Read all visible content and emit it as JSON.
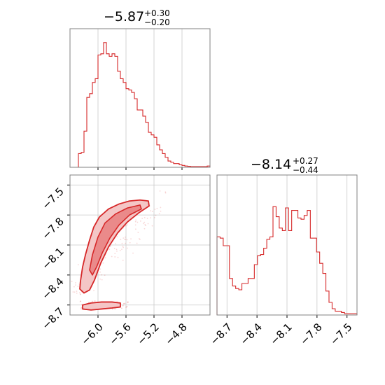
{
  "colors": {
    "line": "#d62728",
    "fill_light": "#f4c6c6",
    "fill_mid": "#ea8a8a",
    "grid": "#c8c8c8",
    "frame": "#808080"
  },
  "chart_data": {
    "type": "corner",
    "params": [
      {
        "title": {
          "main": "−5.87",
          "plus": "+0.30",
          "minus": "−0.20"
        },
        "median": -5.87,
        "err_plus": 0.3,
        "err_minus": 0.2,
        "range": [
          -6.4,
          -4.4
        ],
        "ticks": [
          -6.0,
          -5.6,
          -5.2,
          -4.8
        ],
        "tick_labels": [
          "−6.0",
          "−5.6",
          "−5.2",
          "−4.8"
        ],
        "hist": [
          0,
          0,
          0,
          0.11,
          0.12,
          0.29,
          0.56,
          0.59,
          0.68,
          0.71,
          0.9,
          0.91,
          1.0,
          0.91,
          0.89,
          0.91,
          0.89,
          0.77,
          0.71,
          0.68,
          0.63,
          0.62,
          0.6,
          0.55,
          0.46,
          0.46,
          0.41,
          0.36,
          0.28,
          0.26,
          0.24,
          0.18,
          0.14,
          0.11,
          0.08,
          0.05,
          0.04,
          0.03,
          0.03,
          0.02,
          0.015,
          0.01,
          0.008,
          0.005,
          0.005,
          0.005,
          0.005,
          0.005,
          0.005,
          0.01
        ]
      },
      {
        "title": {
          "main": "−8.14",
          "plus": "+0.27",
          "minus": "−0.44"
        },
        "median": -8.14,
        "err_plus": 0.27,
        "err_minus": 0.44,
        "range": [
          -8.8,
          -7.4
        ],
        "ticks": [
          -8.7,
          -8.4,
          -8.1,
          -7.8,
          -7.5
        ],
        "tick_labels": [
          "−8.7",
          "−8.4",
          "−8.1",
          "−7.8",
          "−7.5"
        ],
        "hist": [
          0.62,
          0.61,
          0.55,
          0.55,
          0.29,
          0.23,
          0.21,
          0.2,
          0.25,
          0.25,
          0.29,
          0.29,
          0.4,
          0.47,
          0.48,
          0.53,
          0.6,
          0.62,
          0.86,
          0.78,
          0.69,
          0.67,
          0.85,
          0.67,
          0.83,
          0.83,
          0.77,
          0.76,
          0.79,
          0.83,
          0.61,
          0.61,
          0.5,
          0.41,
          0.33,
          0.19,
          0.1,
          0.05,
          0.03,
          0.03,
          0.02,
          0.01,
          0.01,
          0.01,
          0.01
        ]
      }
    ],
    "joint": {
      "x_ticks": [
        -6.0,
        -5.6,
        -5.2,
        -4.8
      ],
      "y_ticks": [
        -8.7,
        -8.4,
        -8.1,
        -7.8,
        -7.5
      ],
      "y_tick_labels": [
        "−8.7",
        "−8.4",
        "−8.1",
        "−7.8",
        "−7.5"
      ],
      "contours": {
        "outer": [
          [
            -6.25,
            -8.46
          ],
          [
            -6.22,
            -8.32
          ],
          [
            -6.18,
            -8.2
          ],
          [
            -6.12,
            -8.05
          ],
          [
            -6.06,
            -7.92
          ],
          [
            -5.98,
            -7.82
          ],
          [
            -5.85,
            -7.74
          ],
          [
            -5.7,
            -7.69
          ],
          [
            -5.55,
            -7.66
          ],
          [
            -5.4,
            -7.65
          ],
          [
            -5.28,
            -7.66
          ],
          [
            -5.27,
            -7.71
          ],
          [
            -5.42,
            -7.78
          ],
          [
            -5.58,
            -7.87
          ],
          [
            -5.72,
            -7.98
          ],
          [
            -5.85,
            -8.12
          ],
          [
            -5.96,
            -8.28
          ],
          [
            -6.05,
            -8.45
          ],
          [
            -6.12,
            -8.55
          ],
          [
            -6.2,
            -8.58
          ],
          [
            -6.26,
            -8.54
          ]
        ],
        "inner": [
          [
            -6.12,
            -8.35
          ],
          [
            -6.08,
            -8.2
          ],
          [
            -6.0,
            -8.02
          ],
          [
            -5.9,
            -7.88
          ],
          [
            -5.75,
            -7.79
          ],
          [
            -5.58,
            -7.73
          ],
          [
            -5.4,
            -7.7
          ],
          [
            -5.38,
            -7.74
          ],
          [
            -5.55,
            -7.8
          ],
          [
            -5.7,
            -7.9
          ],
          [
            -5.83,
            -8.03
          ],
          [
            -5.94,
            -8.18
          ],
          [
            -6.02,
            -8.32
          ],
          [
            -6.08,
            -8.4
          ]
        ],
        "bottom": [
          [
            -6.22,
            -8.7
          ],
          [
            -6.1,
            -8.68
          ],
          [
            -5.95,
            -8.67
          ],
          [
            -5.8,
            -8.67
          ],
          [
            -5.68,
            -8.68
          ],
          [
            -5.68,
            -8.72
          ],
          [
            -5.8,
            -8.73
          ],
          [
            -5.95,
            -8.74
          ],
          [
            -6.1,
            -8.75
          ],
          [
            -6.22,
            -8.74
          ]
        ]
      }
    }
  }
}
